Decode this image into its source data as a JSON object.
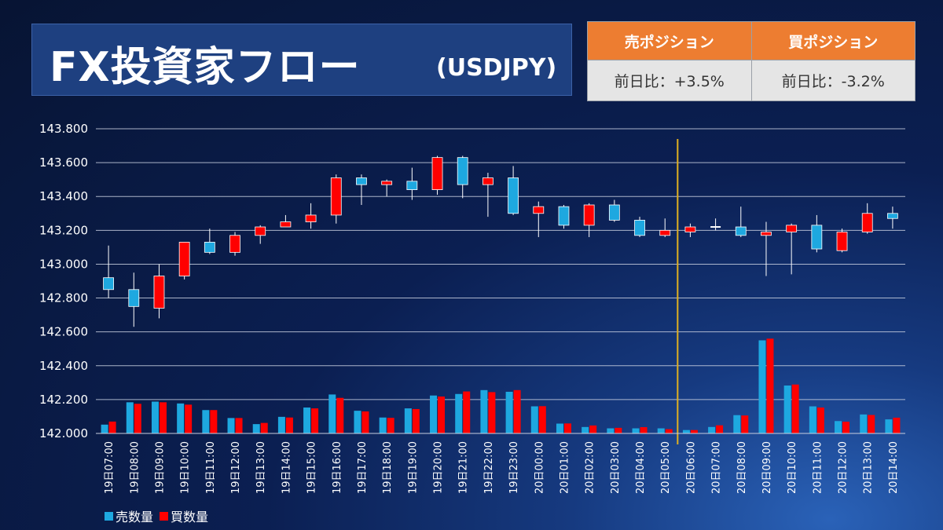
{
  "title": {
    "main": "FX投資家フロー",
    "pair": "(USDJPY)"
  },
  "positions": {
    "sell": {
      "header": "売ポジション",
      "value": "前日比：+3.5%"
    },
    "buy": {
      "header": "買ポジション",
      "value": "前日比：-3.2%"
    }
  },
  "colors": {
    "sell": "#1ea8e0",
    "buy": "#ff0000",
    "marker": "#e0b020",
    "grid": "#c8cfe0"
  },
  "chart_data": {
    "type": "candlestick+bar",
    "ylim": [
      142.0,
      143.8
    ],
    "yticks": [
      "143.800",
      "143.600",
      "143.400",
      "143.200",
      "143.000",
      "142.800",
      "142.600",
      "142.400",
      "142.200",
      "142.000"
    ],
    "ytick_values": [
      143.8,
      143.6,
      143.4,
      143.2,
      143.0,
      142.8,
      142.6,
      142.4,
      142.2,
      142.0
    ],
    "categories": [
      "19日07:00",
      "19日08:00",
      "19日09:00",
      "19日10:00",
      "19日11:00",
      "19日12:00",
      "19日13:00",
      "19日14:00",
      "19日15:00",
      "19日16:00",
      "19日17:00",
      "19日18:00",
      "19日19:00",
      "19日20:00",
      "19日21:00",
      "19日22:00",
      "19日23:00",
      "20日00:00",
      "20日01:00",
      "20日02:00",
      "20日03:00",
      "20日04:00",
      "20日05:00",
      "20日06:00",
      "20日07:00",
      "20日08:00",
      "20日09:00",
      "20日10:00",
      "20日11:00",
      "20日12:00",
      "20日13:00",
      "20日14:00"
    ],
    "candles": [
      {
        "open": 142.85,
        "close": 142.92,
        "high": 143.11,
        "low": 142.8,
        "type": "sell"
      },
      {
        "open": 142.75,
        "close": 142.85,
        "high": 142.95,
        "low": 142.63,
        "type": "sell"
      },
      {
        "open": 142.93,
        "close": 142.74,
        "high": 143.0,
        "low": 142.68,
        "type": "buy"
      },
      {
        "open": 143.13,
        "close": 142.93,
        "high": 143.13,
        "low": 142.91,
        "type": "buy"
      },
      {
        "open": 143.07,
        "close": 143.13,
        "high": 143.21,
        "low": 143.06,
        "type": "sell"
      },
      {
        "open": 143.17,
        "close": 143.07,
        "high": 143.19,
        "low": 143.05,
        "type": "buy"
      },
      {
        "open": 143.22,
        "close": 143.17,
        "high": 143.23,
        "low": 143.12,
        "type": "buy"
      },
      {
        "open": 143.25,
        "close": 143.22,
        "high": 143.29,
        "low": 143.22,
        "type": "buy"
      },
      {
        "open": 143.29,
        "close": 143.25,
        "high": 143.36,
        "low": 143.21,
        "type": "buy"
      },
      {
        "open": 143.51,
        "close": 143.29,
        "high": 143.53,
        "low": 143.24,
        "type": "buy"
      },
      {
        "open": 143.47,
        "close": 143.51,
        "high": 143.53,
        "low": 143.35,
        "type": "sell"
      },
      {
        "open": 143.49,
        "close": 143.47,
        "high": 143.5,
        "low": 143.4,
        "type": "buy"
      },
      {
        "open": 143.44,
        "close": 143.49,
        "high": 143.57,
        "low": 143.38,
        "type": "sell"
      },
      {
        "open": 143.63,
        "close": 143.44,
        "high": 143.64,
        "low": 143.41,
        "type": "buy"
      },
      {
        "open": 143.47,
        "close": 143.63,
        "high": 143.64,
        "low": 143.39,
        "type": "sell"
      },
      {
        "open": 143.51,
        "close": 143.47,
        "high": 143.54,
        "low": 143.28,
        "type": "buy"
      },
      {
        "open": 143.3,
        "close": 143.51,
        "high": 143.58,
        "low": 143.29,
        "type": "sell"
      },
      {
        "open": 143.34,
        "close": 143.3,
        "high": 143.37,
        "low": 143.16,
        "type": "buy"
      },
      {
        "open": 143.23,
        "close": 143.34,
        "high": 143.35,
        "low": 143.21,
        "type": "sell"
      },
      {
        "open": 143.35,
        "close": 143.23,
        "high": 143.36,
        "low": 143.16,
        "type": "buy"
      },
      {
        "open": 143.26,
        "close": 143.35,
        "high": 143.38,
        "low": 143.25,
        "type": "sell"
      },
      {
        "open": 143.17,
        "close": 143.26,
        "high": 143.28,
        "low": 143.16,
        "type": "sell"
      },
      {
        "open": 143.2,
        "close": 143.17,
        "high": 143.27,
        "low": 143.16,
        "type": "buy"
      },
      {
        "open": 143.22,
        "close": 143.19,
        "high": 143.24,
        "low": 143.16,
        "type": "buy"
      },
      {
        "open": 143.22,
        "close": 143.22,
        "high": 143.27,
        "low": 143.2,
        "type": "doji"
      },
      {
        "open": 143.17,
        "close": 143.22,
        "high": 143.34,
        "low": 143.16,
        "type": "sell"
      },
      {
        "open": 143.19,
        "close": 143.17,
        "high": 143.25,
        "low": 142.93,
        "type": "buy"
      },
      {
        "open": 143.23,
        "close": 143.19,
        "high": 143.24,
        "low": 142.94,
        "type": "buy"
      },
      {
        "open": 143.09,
        "close": 143.23,
        "high": 143.29,
        "low": 143.07,
        "type": "sell"
      },
      {
        "open": 143.19,
        "close": 143.08,
        "high": 143.21,
        "low": 143.07,
        "type": "buy"
      },
      {
        "open": 143.3,
        "close": 143.19,
        "high": 143.36,
        "low": 143.18,
        "type": "buy"
      },
      {
        "open": 143.27,
        "close": 143.3,
        "high": 143.34,
        "low": 143.21,
        "type": "sell"
      }
    ],
    "series": [
      {
        "name": "売数量",
        "values": [
          142.052,
          142.184,
          142.188,
          142.177,
          142.138,
          142.091,
          142.055,
          142.098,
          142.153,
          142.23,
          142.134,
          142.094,
          142.148,
          142.224,
          142.233,
          142.256,
          142.246,
          142.16,
          142.058,
          142.038,
          142.03,
          142.03,
          142.03,
          142.02,
          142.038,
          142.108,
          142.55,
          142.283,
          142.16,
          142.073,
          142.112,
          142.083
        ]
      },
      {
        "name": "買数量",
        "values": [
          142.07,
          142.175,
          142.184,
          142.17,
          142.138,
          142.091,
          142.062,
          142.094,
          142.148,
          142.21,
          142.13,
          142.092,
          142.144,
          142.218,
          142.248,
          142.244,
          142.256,
          142.161,
          142.059,
          142.047,
          142.033,
          142.037,
          142.025,
          142.02,
          142.048,
          142.106,
          142.56,
          142.289,
          142.153,
          142.069,
          142.109,
          142.093
        ]
      }
    ],
    "legend": [
      "売数量",
      "買数量"
    ],
    "marker_after_category": "20日05:00"
  }
}
